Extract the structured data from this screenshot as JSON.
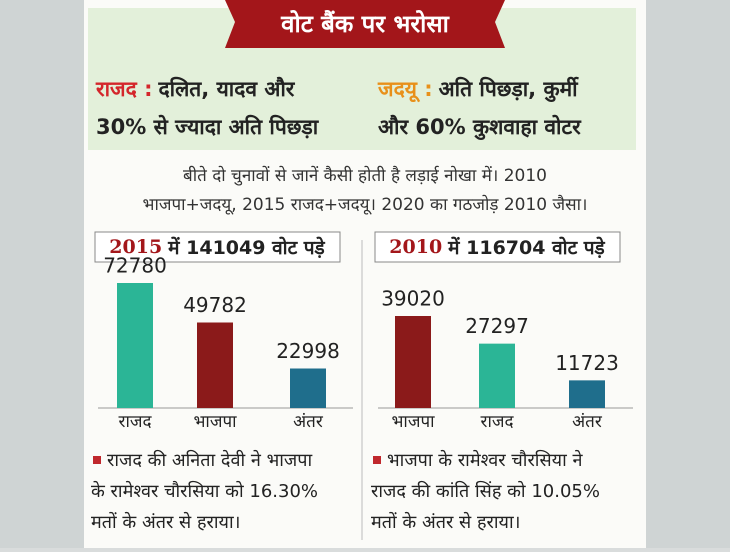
{
  "header": {
    "title": "वोट बैंक पर भरोसा"
  },
  "parties": [
    {
      "label": "राजद :",
      "lines": [
        "दलित, यादव और",
        "30% से ज्यादा अति पिछड़ा"
      ]
    },
    {
      "label": "जदयू :",
      "lines": [
        "अति पिछड़ा, कुर्मी",
        "और 60% कुशवाहा वोटर"
      ]
    }
  ],
  "intro": [
    "बीते दो चुनावों से जानें कैसी होती है लड़ाई नोखा में। 2010",
    "भाजपा+जदयू, 2015 राजद+जदयू। 2020 का गठजोड़ 2010 जैसा।"
  ],
  "chart_data": [
    {
      "type": "bar",
      "title_year": "2015",
      "title": "में 141049 वोट पड़े",
      "categories": [
        "राजद",
        "भाजपा",
        "अंतर"
      ],
      "values": [
        72780,
        49782,
        22998
      ],
      "colors": [
        "#2bb596",
        "#8b1a1a",
        "#1f6e8c"
      ],
      "note": [
        "राजद की अनिता देवी ने भाजपा",
        "के रामेश्वर चौरसिया को 16.30%",
        "मतों के अंतर से हराया।"
      ]
    },
    {
      "type": "bar",
      "title_year": "2010",
      "title": "में 116704 वोट पड़े",
      "categories": [
        "भाजपा",
        "राजद",
        "अंतर"
      ],
      "values": [
        39020,
        27297,
        11723
      ],
      "colors": [
        "#8b1a1a",
        "#2bb596",
        "#1f6e8c"
      ],
      "note": [
        "भाजपा के रामेश्वर चौरसिया ने",
        "राजद की कांति सिंह को 10.05%",
        "मतों के अंतर से हराया।"
      ]
    }
  ]
}
